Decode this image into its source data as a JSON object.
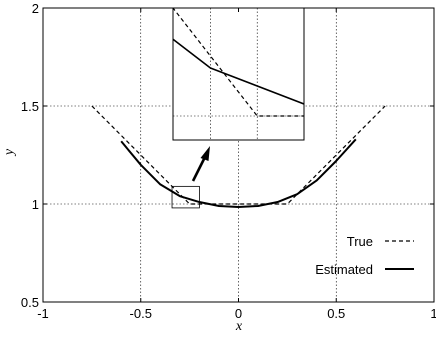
{
  "chart_data": {
    "type": "line",
    "xlabel": "x",
    "ylabel": "y",
    "xlim": [
      -1,
      1
    ],
    "ylim": [
      0.5,
      2
    ],
    "x_ticks": [
      "-1",
      "-0.5",
      "0",
      "0.5",
      "1"
    ],
    "y_ticks": [
      "0.5",
      "1",
      "1.5",
      "2"
    ],
    "grid": true,
    "legend_position": "bottom-right",
    "series": [
      {
        "name": "True",
        "style": "dashed",
        "color": "#000000",
        "x": [
          -0.75,
          -0.6,
          -0.45,
          -0.35,
          -0.25,
          0.25,
          0.35,
          0.45,
          0.6,
          0.75
        ],
        "y": [
          1.5,
          1.35,
          1.2,
          1.1,
          1.0,
          1.0,
          1.1,
          1.2,
          1.35,
          1.5
        ]
      },
      {
        "name": "Estimated",
        "style": "solid",
        "color": "#000000",
        "x": [
          -0.6,
          -0.5,
          -0.4,
          -0.3,
          -0.2,
          -0.1,
          0.0,
          0.1,
          0.2,
          0.3,
          0.4,
          0.5,
          0.6
        ],
        "y": [
          1.32,
          1.2,
          1.1,
          1.04,
          1.01,
          0.99,
          0.985,
          0.99,
          1.01,
          1.05,
          1.12,
          1.22,
          1.33
        ]
      }
    ],
    "inset": {
      "source_xlim": [
        -0.34,
        -0.2
      ],
      "source_ylim": [
        0.98,
        1.09
      ],
      "grid": true,
      "pointer": "arrow"
    }
  }
}
